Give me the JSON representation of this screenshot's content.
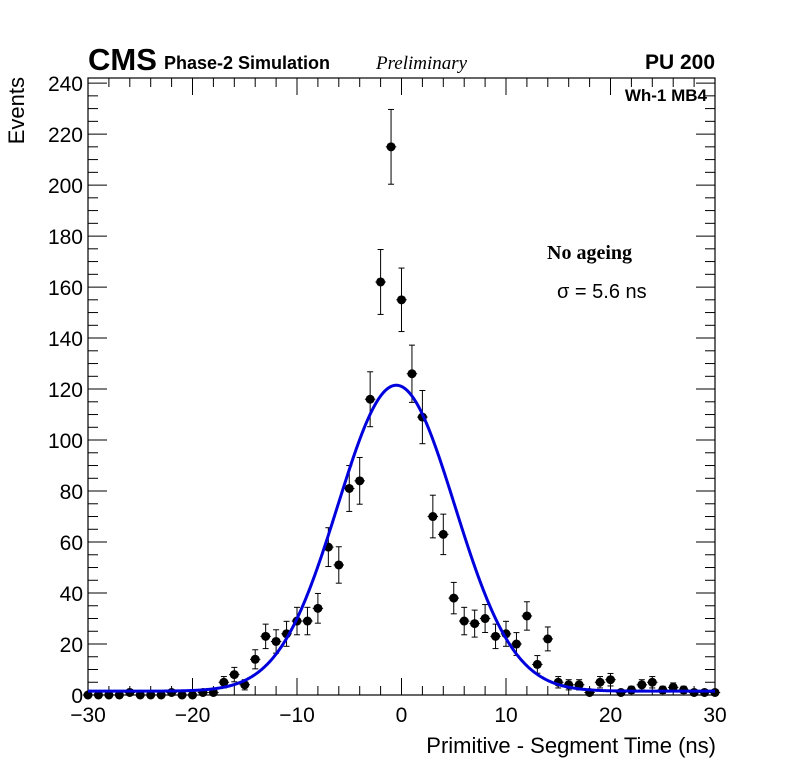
{
  "header": {
    "experiment": "CMS",
    "subtitle": "Phase-2 Simulation",
    "status": "Preliminary",
    "pileup": "PU 200"
  },
  "annotations": {
    "chamber": "Wh-1 MB4",
    "condition": "No ageing",
    "sigma_text": "σ = 5.6 ns"
  },
  "chart_data": {
    "type": "scatter",
    "title": "",
    "xlabel": "Primitive - Segment Time (ns)",
    "ylabel": "Events",
    "xlim": [
      -30,
      30
    ],
    "ylim": [
      0,
      242
    ],
    "x_ticks": [
      -30,
      -20,
      -10,
      0,
      10,
      20,
      30
    ],
    "x_tick_labels": [
      "−30",
      "−20",
      "−10",
      "0",
      "10",
      "20",
      "30"
    ],
    "y_ticks": [
      0,
      20,
      40,
      60,
      80,
      100,
      120,
      140,
      160,
      180,
      200,
      220,
      240
    ],
    "y_tick_labels": [
      "0",
      "20",
      "40",
      "60",
      "80",
      "100",
      "120",
      "140",
      "160",
      "180",
      "200",
      "220",
      "240"
    ],
    "bin_width": 1,
    "series": [
      {
        "name": "data",
        "x": [
          -30,
          -29,
          -28,
          -27,
          -26,
          -25,
          -24,
          -23,
          -22,
          -21,
          -20,
          -19,
          -18,
          -17,
          -16,
          -15,
          -14,
          -13,
          -12,
          -11,
          -10,
          -9,
          -8,
          -7,
          -6,
          -5,
          -4,
          -3,
          -2,
          -1,
          0,
          1,
          2,
          3,
          4,
          5,
          6,
          7,
          8,
          9,
          10,
          11,
          12,
          13,
          14,
          15,
          16,
          17,
          18,
          19,
          20,
          21,
          22,
          23,
          24,
          25,
          26,
          27,
          28,
          29,
          30
        ],
        "values": [
          0,
          0,
          0,
          0,
          1,
          0,
          0,
          0,
          1,
          0,
          0,
          1,
          1,
          5,
          8,
          4,
          14,
          23,
          21,
          24,
          29,
          29,
          34,
          58,
          51,
          81,
          84,
          116,
          162,
          215,
          155,
          126,
          109,
          70,
          63,
          38,
          29,
          28,
          30,
          23,
          24,
          20,
          31,
          12,
          22,
          5,
          4,
          4,
          1,
          5,
          6,
          1,
          2,
          4,
          5,
          2,
          3,
          2,
          1,
          1,
          1
        ]
      },
      {
        "name": "Gaussian fit",
        "type": "line",
        "mean": -0.5,
        "sigma": 5.6,
        "amplitude": 120,
        "baseline": 1.5
      }
    ]
  },
  "colors": {
    "data": "#000000",
    "fit": "#0000dd",
    "axis": "#000000",
    "background": "#ffffff"
  }
}
